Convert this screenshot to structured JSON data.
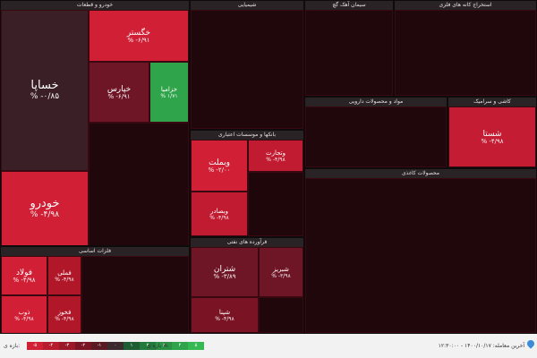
{
  "sectors": {
    "auto": "خودرو و قطعات",
    "food": "فلزات اساسی",
    "chem": "شیمیایی",
    "finance": "فرآورده های نفتی",
    "metal": "فرآورده های نفتی",
    "telecom": "سیمان آهک گچ",
    "invest": "بانکها و موسسات اعتباری",
    "mining": "استخراج کانه های فلزی",
    "pharma": "مواد و محصولات دارویی",
    "tile": "کاشی و سرامیک",
    "misc": "محصولات کاغذی"
  },
  "tiles": {
    "khsapa": {
      "name": "خساپا",
      "value": "% -۰/۸۵"
    },
    "khodro": {
      "name": "خودرو",
      "value": "% -۴/۹۸"
    },
    "khgostar": {
      "name": "خگستر",
      "value": "% -۶/۹۱"
    },
    "kharis": {
      "name": "خپارس",
      "value": "% -۶/۹۱"
    },
    "khazam": {
      "name": "خزامیا",
      "value": "% ۱/۷۱"
    },
    "vebmelat": {
      "name": "وبملت",
      "value": "% -۲/۰۰"
    },
    "vtejarat": {
      "name": "وتجارت",
      "value": "% -۴/۹۸"
    },
    "vsader": {
      "name": "وبصادر",
      "value": "% -۴/۹۸"
    },
    "shatran": {
      "name": "شتران",
      "value": "% -۳/۸۹"
    },
    "shebriz": {
      "name": "شبریز",
      "value": "% -۳/۹۸"
    },
    "shepna": {
      "name": "شپنا",
      "value": "% -۴/۹۸"
    },
    "shasta": {
      "name": "شستا",
      "value": "% -۴/۹۸"
    },
    "foolad": {
      "name": "فولاد",
      "value": "% -۴/۹۸"
    },
    "fameli": {
      "name": "فملی",
      "value": "% -۴/۹۸"
    },
    "zob": {
      "name": "ذوب",
      "value": "% -۴/۹۸"
    },
    "fakhooz": {
      "name": "فخوز",
      "value": "% -۴/۹۸"
    }
  },
  "footer": {
    "legend_label": "بازه ی:",
    "legend_values": [
      "-۵",
      "-۴",
      "-۳",
      "-۲",
      "-۱",
      "۰",
      "۱",
      "۲",
      "۳",
      "۴",
      "۵"
    ],
    "change_label": "بازه ی %",
    "updated": "آخرین معامله: ۱۴۰۰/۱۰/۱۷ - ۱۲:۳۰:۰۰"
  },
  "colors": {
    "deep_red": "#b0182a",
    "red": "#d11f35",
    "dark": "#3a1c24",
    "green": "#2fa44a",
    "maroon": "#7a1424"
  }
}
